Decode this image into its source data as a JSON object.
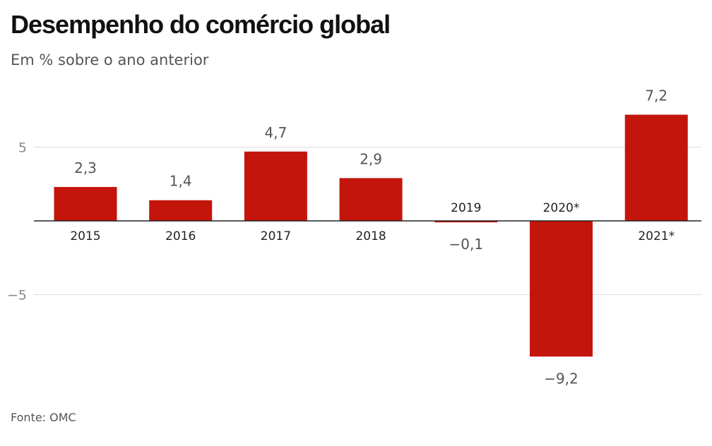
{
  "chart_data": {
    "type": "bar",
    "title": "Desempenho do comércio global",
    "subtitle": "Em % sobre o ano anterior",
    "source": "Fonte: OMC",
    "categories": [
      "2015",
      "2016",
      "2017",
      "2018",
      "2019",
      "2020*",
      "2021*"
    ],
    "values": [
      2.3,
      1.4,
      4.7,
      2.9,
      -0.1,
      -9.2,
      7.2
    ],
    "value_labels": [
      "2,3",
      "1,4",
      "4,7",
      "2,9",
      "−0,1",
      "−9,2",
      "7,2"
    ],
    "yticks": [
      5,
      -5
    ],
    "ytick_labels": [
      "5",
      "−5"
    ],
    "ylim": [
      -12,
      9
    ],
    "grid": true,
    "bar_color": "#c4150c"
  }
}
